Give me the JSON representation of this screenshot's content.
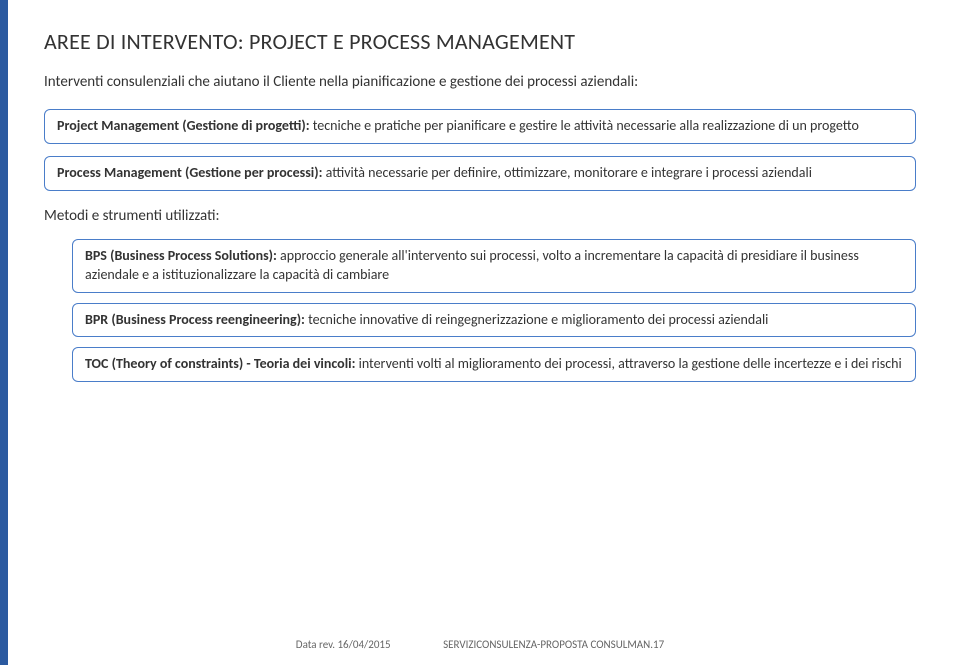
{
  "title": "AREE DI INTERVENTO: PROJECT E PROCESS MANAGEMENT",
  "intro": "Interventi consulenziali che aiutano il Cliente nella pianificazione e gestione dei processi aziendali:",
  "box1": {
    "lead": "Project Management (Gestione di progetti):",
    "rest": " tecniche e pratiche per pianificare e gestire le attività necessarie alla realizzazione di un progetto"
  },
  "box2": {
    "lead": "Process Management (Gestione per processi):",
    "rest": " attività necessarie per definire, ottimizzare, monitorare e integrare i processi aziendali"
  },
  "subheader": "Metodi e strumenti utilizzati:",
  "box3": {
    "lead": "BPS (Business Process Solutions):",
    "rest": " approccio generale all'intervento sui processi, volto a incrementare la capacità di presidiare il business aziendale e a istituzionalizzare la capacità di cambiare"
  },
  "box4": {
    "lead": "BPR (Business Process reengineering):",
    "rest": "  tecniche innovative di reingegnerizzazione e miglioramento dei processi aziendali"
  },
  "box5": {
    "lead": "TOC (Theory of constraints) - Teoria dei vincoli:",
    "rest": " interventi volti al miglioramento dei processi, attraverso la gestione delle incertezze e i dei rischi"
  },
  "footer": {
    "date_label": "Data rev. 16/04/2015",
    "doc_label": "SERVIZICONSULENZA-PROPOSTA CONSULMAN",
    "page": ".17"
  },
  "style": {
    "box_border_color": "#4a7dc9",
    "left_stripe_color": "#2b5aa0",
    "background_color": "#ffffff",
    "title_fontsize": 22,
    "body_fontsize": 14
  }
}
